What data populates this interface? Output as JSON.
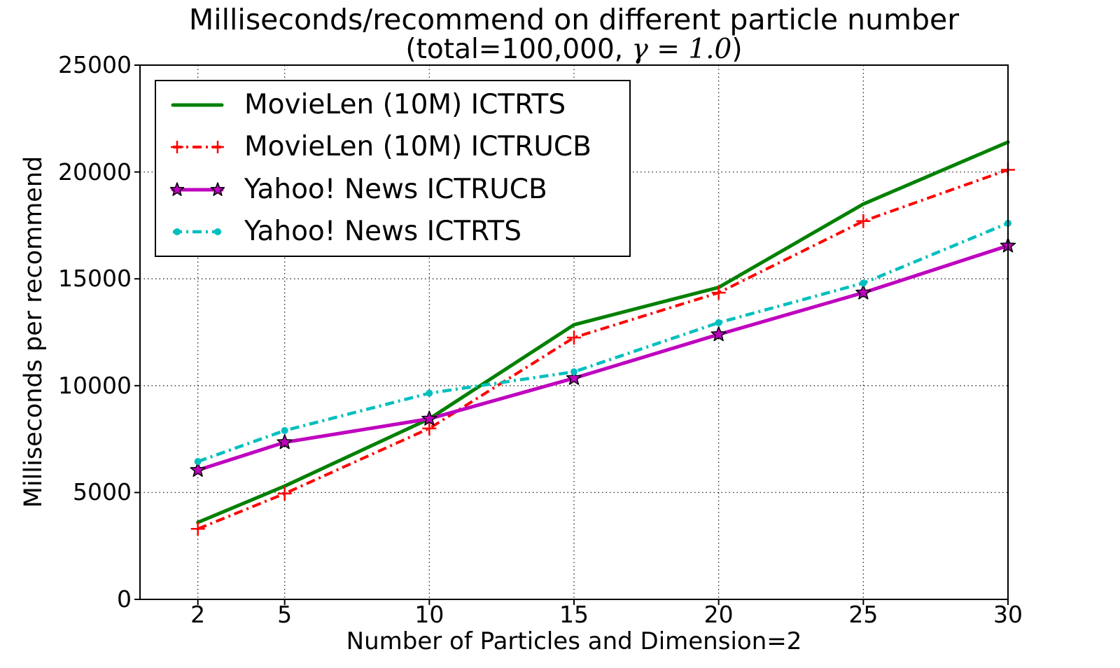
{
  "title": {
    "line1": "Milliseconds/recommend on different particle number",
    "line2_prefix": "(total=100,000, ",
    "line2_math": "γ = 1.0",
    "line2_suffix": ")"
  },
  "chart_data": {
    "type": "line",
    "title": "Milliseconds/recommend on different particle number (total=100,000, γ = 1.0)",
    "xlabel": "Number of Particles and Dimension=2",
    "ylabel": "Milliseconds per recommend",
    "xlim": [
      0,
      30
    ],
    "ylim": [
      0,
      25000
    ],
    "xticks": [
      2,
      5,
      10,
      15,
      20,
      25,
      30
    ],
    "yticks": [
      0,
      5000,
      10000,
      15000,
      20000,
      25000
    ],
    "grid": true,
    "legend_position": "upper left",
    "x": [
      2,
      5,
      10,
      15,
      20,
      25,
      30
    ],
    "series": [
      {
        "name": "MovieLen (10M) ICTRTS",
        "color": "#008000",
        "style": "solid",
        "marker": "none",
        "line_width": 5,
        "values": [
          3600,
          5300,
          8450,
          12850,
          14600,
          18500,
          21400
        ]
      },
      {
        "name": "MovieLen (10M) ICTRUCB",
        "color": "#ff0000",
        "style": "dashdot",
        "marker": "plus",
        "line_width": 4,
        "values": [
          3300,
          4950,
          8000,
          12250,
          14350,
          17700,
          20100
        ]
      },
      {
        "name": "Yahoo! News ICTRUCB",
        "color": "#bf00bf",
        "style": "solid",
        "marker": "star",
        "line_width": 5,
        "values": [
          6050,
          7350,
          8450,
          10350,
          12400,
          14350,
          16550
        ]
      },
      {
        "name": "Yahoo! News ICTRTS",
        "color": "#00bfbf",
        "style": "dashdot",
        "marker": "dot",
        "line_width": 4.5,
        "values": [
          6450,
          7900,
          9650,
          10650,
          12950,
          14800,
          17600
        ]
      }
    ]
  }
}
